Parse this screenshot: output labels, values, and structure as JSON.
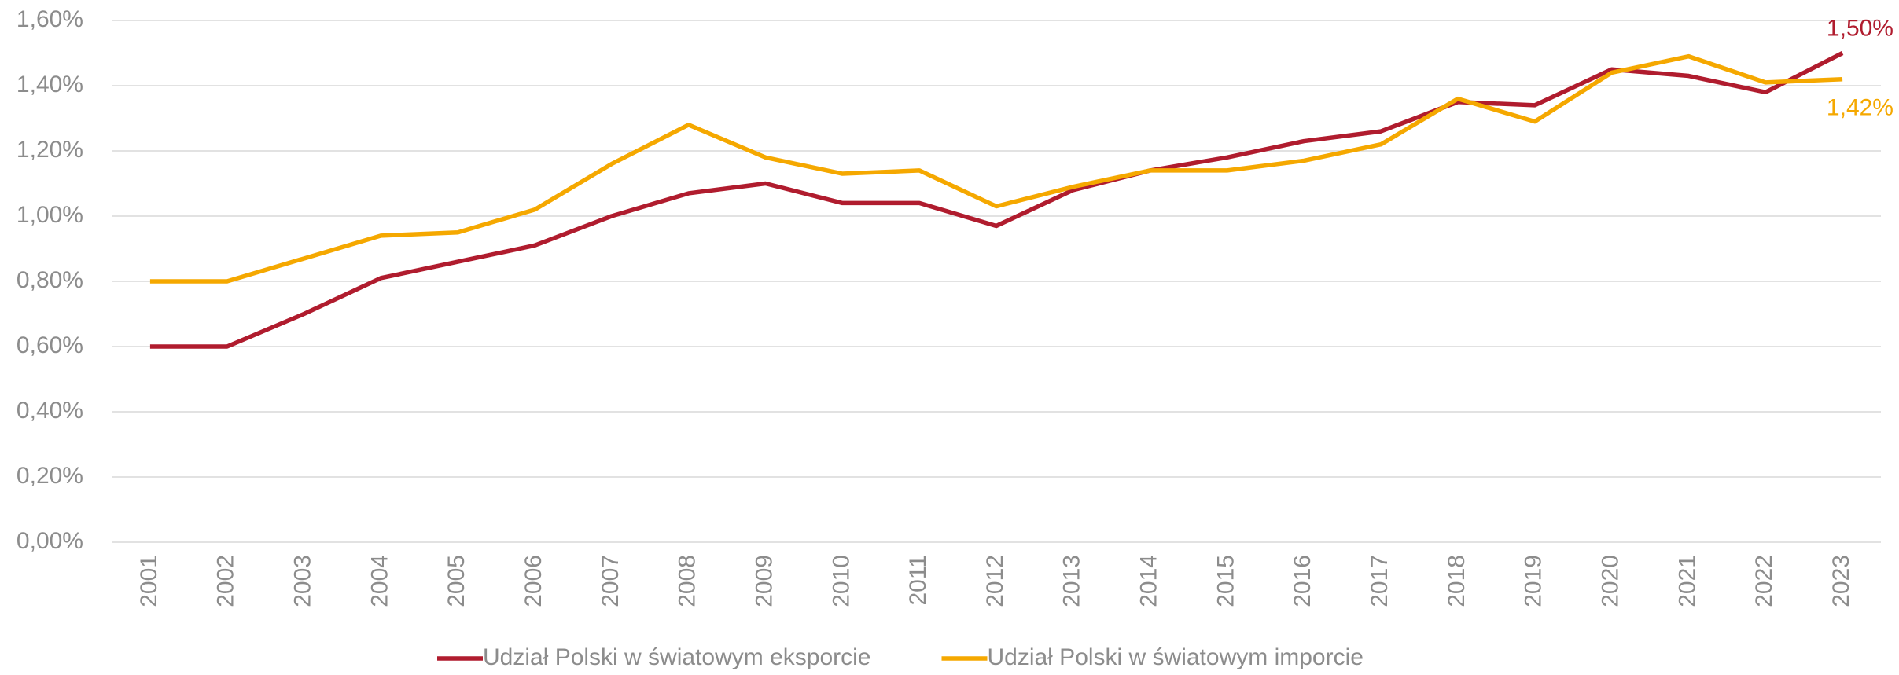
{
  "chart_data": {
    "type": "line",
    "categories": [
      "2001",
      "2002",
      "2003",
      "2004",
      "2005",
      "2006",
      "2007",
      "2008",
      "2009",
      "2010",
      "2011",
      "2012",
      "2013",
      "2014",
      "2015",
      "2016",
      "2017",
      "2018",
      "2019",
      "2020",
      "2021",
      "2022",
      "2023"
    ],
    "series": [
      {
        "name": "Udział Polski w światowym eksporcie",
        "color": "#b01c2e",
        "values": [
          0.6,
          0.6,
          0.7,
          0.81,
          0.86,
          0.91,
          1.0,
          1.07,
          1.1,
          1.04,
          1.04,
          0.97,
          1.08,
          1.14,
          1.18,
          1.23,
          1.26,
          1.35,
          1.34,
          1.45,
          1.43,
          1.38,
          1.5
        ],
        "value_labels": [
          null,
          null,
          null,
          null,
          null,
          null,
          null,
          null,
          null,
          null,
          null,
          null,
          null,
          null,
          null,
          null,
          null,
          null,
          null,
          null,
          null,
          null,
          "1,50%"
        ]
      },
      {
        "name": "Udział Polski w światowym imporcie",
        "color": "#f5a800",
        "values": [
          0.8,
          0.8,
          0.87,
          0.94,
          0.95,
          1.02,
          1.16,
          1.28,
          1.18,
          1.13,
          1.14,
          1.03,
          1.09,
          1.14,
          1.14,
          1.17,
          1.22,
          1.36,
          1.29,
          1.44,
          1.49,
          1.41,
          1.42
        ],
        "value_labels": [
          null,
          null,
          null,
          null,
          null,
          null,
          null,
          null,
          null,
          null,
          null,
          null,
          null,
          null,
          null,
          null,
          null,
          null,
          null,
          null,
          null,
          null,
          "1,42%"
        ]
      }
    ],
    "ylim": [
      0,
      1.6
    ],
    "yticks": [
      {
        "value": 0,
        "label": "0,00%"
      },
      {
        "value": 0.2,
        "label": "0,20%"
      },
      {
        "value": 0.4,
        "label": "0,40%"
      },
      {
        "value": 0.6,
        "label": "0,60%"
      },
      {
        "value": 0.8,
        "label": "0,80%"
      },
      {
        "value": 1.0,
        "label": "1,00%"
      },
      {
        "value": 1.2,
        "label": "1,20%"
      },
      {
        "value": 1.4,
        "label": "1,40%"
      },
      {
        "value": 1.6,
        "label": "1,60%"
      }
    ],
    "grid": true,
    "legend": "bottom"
  }
}
